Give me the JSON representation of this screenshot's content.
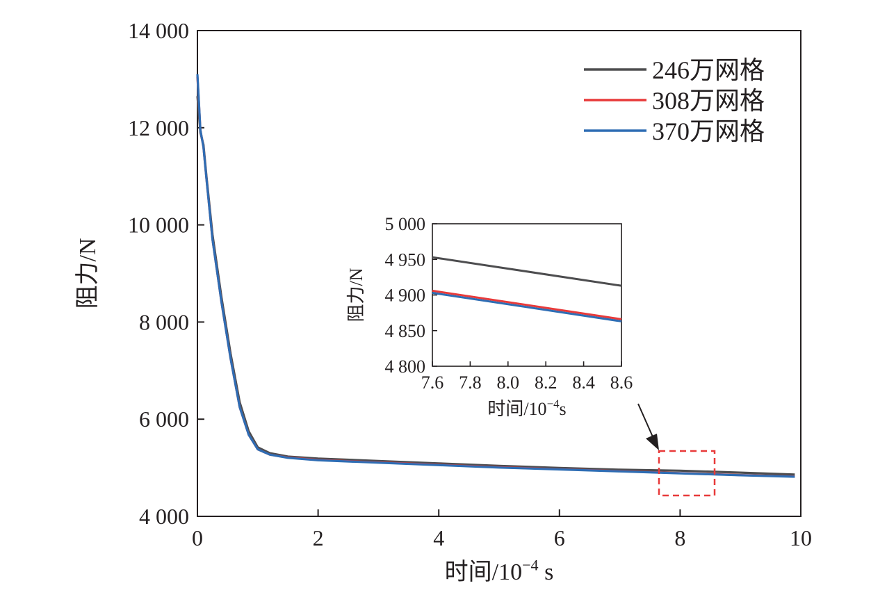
{
  "chart_data": [
    {
      "type": "line",
      "xlabel": "时间/10⁻⁴ s",
      "ylabel": "阻力/N",
      "xlim": [
        0,
        10
      ],
      "ylim": [
        4000,
        14000
      ],
      "x_ticks": [
        0,
        2,
        4,
        6,
        8,
        10
      ],
      "x_tick_labels": [
        "0",
        "2",
        "4",
        "6",
        "8",
        "10"
      ],
      "y_ticks": [
        4000,
        6000,
        8000,
        10000,
        12000,
        14000
      ],
      "y_tick_labels": [
        "4 000",
        "6 000",
        "8 000",
        "10 000",
        "12 000",
        "14 000"
      ],
      "legend_position": "top-right",
      "series": [
        {
          "name": "246万网格",
          "color": "#4d4d4f",
          "x": [
            0,
            0.05,
            0.1,
            0.15,
            0.25,
            0.4,
            0.55,
            0.7,
            0.85,
            1.0,
            1.2,
            1.5,
            2,
            3,
            4,
            5,
            6,
            7,
            8,
            9,
            9.9
          ],
          "y": [
            12650,
            11900,
            11650,
            11000,
            9800,
            8500,
            7350,
            6350,
            5750,
            5420,
            5300,
            5230,
            5190,
            5140,
            5090,
            5040,
            4995,
            4960,
            4940,
            4900,
            4860
          ]
        },
        {
          "name": "308万网格",
          "color": "#e83a3a",
          "x": [
            0,
            0.05,
            0.1,
            0.15,
            0.25,
            0.4,
            0.55,
            0.7,
            0.85,
            1.0,
            1.2,
            1.5,
            2,
            3,
            4,
            5,
            6,
            7,
            8,
            9,
            9.9
          ],
          "y": [
            13050,
            11950,
            11600,
            10950,
            9700,
            8400,
            7250,
            6250,
            5680,
            5380,
            5270,
            5210,
            5160,
            5110,
            5060,
            5010,
            4970,
            4930,
            4890,
            4850,
            4820
          ]
        },
        {
          "name": "370万网格",
          "color": "#2e6db4",
          "x": [
            0,
            0.05,
            0.1,
            0.15,
            0.25,
            0.4,
            0.55,
            0.7,
            0.85,
            1.0,
            1.2,
            1.5,
            2,
            3,
            4,
            5,
            6,
            7,
            8,
            9,
            9.9
          ],
          "y": [
            13100,
            11950,
            11600,
            10950,
            9700,
            8400,
            7250,
            6250,
            5680,
            5380,
            5270,
            5205,
            5155,
            5105,
            5055,
            5005,
            4965,
            4925,
            4885,
            4845,
            4815
          ]
        }
      ]
    },
    {
      "type": "line",
      "xlabel": "时间/10⁻⁴s",
      "ylabel": "阻力/N",
      "xlim": [
        7.6,
        8.6
      ],
      "ylim": [
        4800,
        5000
      ],
      "x_ticks": [
        7.6,
        7.8,
        8.0,
        8.2,
        8.4,
        8.6
      ],
      "x_tick_labels": [
        "7.6",
        "7.8",
        "8.0",
        "8.2",
        "8.4",
        "8.6"
      ],
      "y_ticks": [
        4800,
        4850,
        4900,
        4950,
        5000
      ],
      "y_tick_labels": [
        "4 800",
        "4 850",
        "4 900",
        "4 950",
        "5 000"
      ],
      "series": [
        {
          "name": "246万网格",
          "color": "#4d4d4f",
          "x": [
            7.6,
            8.6
          ],
          "y": [
            4953,
            4913
          ]
        },
        {
          "name": "308万网格",
          "color": "#e83a3a",
          "x": [
            7.6,
            8.6
          ],
          "y": [
            4906,
            4866
          ]
        },
        {
          "name": "370万网格",
          "color": "#2e6db4",
          "x": [
            7.6,
            8.6
          ],
          "y": [
            4903,
            4863
          ]
        }
      ]
    }
  ]
}
